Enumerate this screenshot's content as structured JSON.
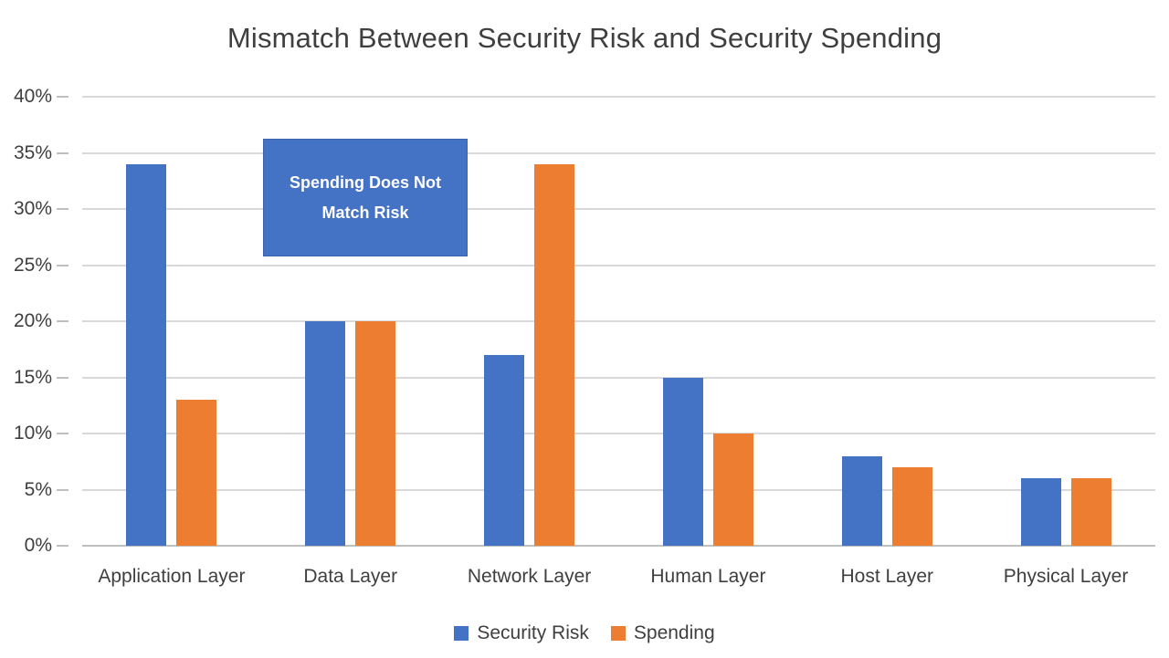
{
  "title": "Mismatch Between Security Risk and Security Spending",
  "chart_data": {
    "type": "bar",
    "title": "Mismatch Between Security Risk and Security Spending",
    "categories": [
      "Application Layer",
      "Data Layer",
      "Network Layer",
      "Human Layer",
      "Host Layer",
      "Physical Layer"
    ],
    "series": [
      {
        "name": "Security Risk",
        "color": "#4472C4",
        "values": [
          34,
          20,
          17,
          15,
          8,
          6
        ]
      },
      {
        "name": "Spending",
        "color": "#ED7D31",
        "values": [
          13,
          20,
          34,
          10,
          7,
          6
        ]
      }
    ],
    "xlabel": "",
    "ylabel": "",
    "ylim": [
      0,
      40
    ],
    "ytick_step": 5,
    "ytick_suffix": "%",
    "grid": true,
    "legend_position": "bottom",
    "annotation": {
      "line1": "Spending Does Not",
      "line2": "Match Risk",
      "bg_color": "#4472C4",
      "text_color": "#FFFFFF"
    }
  },
  "colors": {
    "background": "#FFFFFF",
    "text": "#3F3F3F",
    "gridline": "#D9D9D9",
    "axis_line": "#BFBFBF"
  }
}
